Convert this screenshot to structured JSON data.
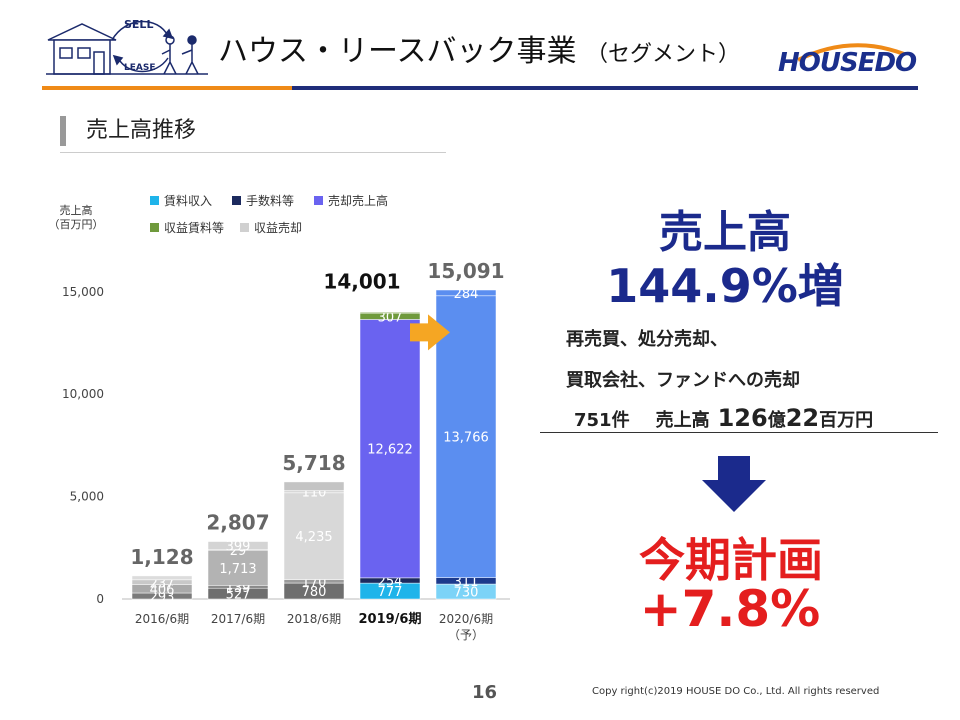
{
  "header": {
    "title": "ハウス・リースバック事業",
    "subtitle": "（セグメント）",
    "logo_text": "HOUSEDO",
    "illustration_text_top": "SELL",
    "illustration_text_bottom": "LEASE"
  },
  "section": {
    "title": "売上高推移"
  },
  "colors": {
    "orange_rule": "#ef8a17",
    "navy_rule": "#1f2d7a",
    "rental": "#1fb4ea",
    "fee": "#1c2a5e",
    "sales": "#6a63f0",
    "profit_rental": "#6f9a3c",
    "profit_sales": "#d0d0d0",
    "highlight_red": "#e41e1e",
    "highlight_navy": "#1b2a8c",
    "arrow_orange": "#f5a623"
  },
  "chart_data": {
    "type": "bar",
    "stacked": true,
    "unit_label": [
      "売上高",
      "（百万円）"
    ],
    "categories": [
      "2016/6期",
      "2017/6期",
      "2018/6期",
      "2019/6期",
      "2020/6期"
    ],
    "category_note": "（予）",
    "ylim": [
      0,
      15091
    ],
    "yticks": [
      "0",
      "5,000",
      "10,000",
      "15,000"
    ],
    "ytick_values": [
      0,
      5000,
      10000,
      15000
    ],
    "legend": [
      "賃料収入",
      "手数料等",
      "売却売上高",
      "収益賃料等",
      "収益売却"
    ],
    "totals": [
      "1,128",
      "2,807",
      "5,718",
      "14,001",
      "15,091"
    ],
    "bars": [
      {
        "segments": [
          {
            "series": "収益賃料等",
            "value": 293,
            "label": "293",
            "color": "#7a7a7a"
          },
          {
            "series": "収益賃料等",
            "value": 406,
            "label": "406",
            "color": "#a9a9a9"
          },
          {
            "series": "収益売却",
            "value": 237,
            "label": "237",
            "color": "#c8c8c8"
          },
          {
            "series": "収益売却",
            "value": 192,
            "label": "",
            "color": "#dcdcdc"
          }
        ]
      },
      {
        "segments": [
          {
            "series": "賃料",
            "value": 527,
            "label": "527",
            "color": "#6e6e6e"
          },
          {
            "series": "手数料",
            "value": 139,
            "label": "139",
            "color": "#8a8a8a"
          },
          {
            "series": "売却",
            "value": 1713,
            "label": "1,713",
            "color": "#b3b3b3"
          },
          {
            "series": "収益賃料",
            "value": 29,
            "label": "29",
            "color": "#9a9a9a"
          },
          {
            "series": "収益売却",
            "value": 399,
            "label": "399",
            "color": "#d4d4d4"
          }
        ]
      },
      {
        "segments": [
          {
            "series": "賃料",
            "value": 780,
            "label": "780",
            "color": "#6e6e6e"
          },
          {
            "series": "手数料",
            "value": 170,
            "label": "170",
            "color": "#9a9a9a"
          },
          {
            "series": "売却",
            "value": 4235,
            "label": "4,235",
            "color": "#d8d8d8"
          },
          {
            "series": "収益賃料",
            "value": 110,
            "label": "110",
            "color": "#d8d8d8"
          },
          {
            "series": "収益売却",
            "value": 423,
            "label": "",
            "color": "#c4c4c4"
          }
        ]
      },
      {
        "segments": [
          {
            "series": "賃料収入",
            "value": 777,
            "label": "777",
            "color": "#1fb4ea"
          },
          {
            "series": "手数料等",
            "value": 254,
            "label": "254",
            "color": "#1c2a5e"
          },
          {
            "series": "売却売上高",
            "value": 12622,
            "label": "12,622",
            "color": "#6a63f0"
          },
          {
            "series": "収益賃料等",
            "value": 307,
            "label": "307",
            "color": "#6f9a3c"
          },
          {
            "series": "収益売却",
            "value": 41,
            "label": "",
            "color": "#6f9a3c"
          }
        ]
      },
      {
        "segments": [
          {
            "series": "賃料収入",
            "value": 730,
            "label": "730",
            "color": "#7cd3f7"
          },
          {
            "series": "手数料等",
            "value": 311,
            "label": "311",
            "color": "#1c3a8c"
          },
          {
            "series": "売却売上高",
            "value": 13766,
            "label": "13,766",
            "color": "#5b8ef0"
          },
          {
            "series": "収益賃料等",
            "value": 284,
            "label": "284",
            "color": "#5b8ef0"
          }
        ]
      }
    ]
  },
  "highlight": {
    "heading": "売上高",
    "growth": "144.9%増",
    "detail_line1": "再売買、処分売却、",
    "detail_line2": "買取会社、ファンドへの売却",
    "detail_count": "751件",
    "detail_sales_label": "売上高",
    "detail_sales_big1": "126",
    "detail_sales_unit1": "億",
    "detail_sales_big2": "22",
    "detail_sales_unit2": "百万円",
    "plan_heading": "今期計画",
    "plan_value": "+7.8%"
  },
  "footer": {
    "page_number": "16",
    "copyright": "Copy right(c)2019  HOUSE DO Co., Ltd. All rights reserved"
  }
}
